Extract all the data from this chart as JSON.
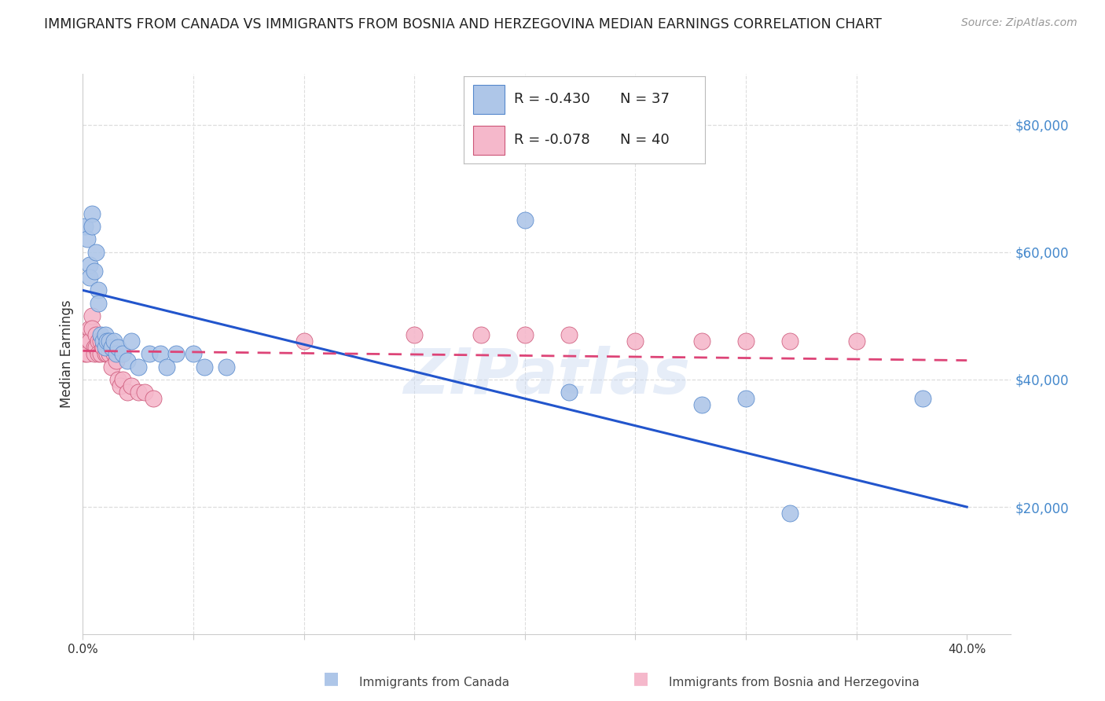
{
  "title": "IMMIGRANTS FROM CANADA VS IMMIGRANTS FROM BOSNIA AND HERZEGOVINA MEDIAN EARNINGS CORRELATION CHART",
  "source": "Source: ZipAtlas.com",
  "ylabel": "Median Earnings",
  "xlim": [
    0.0,
    0.42
  ],
  "ylim": [
    0,
    88000
  ],
  "watermark": "ZIPatlas",
  "canada_color": "#aec6e8",
  "canada_edge": "#5588cc",
  "bosnia_color": "#f5b8cb",
  "bosnia_edge": "#cc5577",
  "canada_line_color": "#2255cc",
  "bosnia_line_color": "#dd4477",
  "legend_R_canada": "-0.430",
  "legend_N_canada": "37",
  "legend_R_bosnia": "-0.078",
  "legend_N_bosnia": "40",
  "canada_label": "Immigrants from Canada",
  "bosnia_label": "Immigrants from Bosnia and Herzegovina",
  "canada_scatter_x": [
    0.001,
    0.002,
    0.003,
    0.003,
    0.004,
    0.004,
    0.005,
    0.006,
    0.007,
    0.007,
    0.008,
    0.009,
    0.01,
    0.01,
    0.011,
    0.012,
    0.013,
    0.014,
    0.015,
    0.016,
    0.018,
    0.02,
    0.022,
    0.025,
    0.03,
    0.035,
    0.038,
    0.042,
    0.05,
    0.055,
    0.065,
    0.2,
    0.22,
    0.28,
    0.3,
    0.32,
    0.38
  ],
  "canada_scatter_y": [
    64000,
    62000,
    58000,
    56000,
    66000,
    64000,
    57000,
    60000,
    54000,
    52000,
    47000,
    46000,
    47000,
    45000,
    46000,
    46000,
    45000,
    46000,
    44000,
    45000,
    44000,
    43000,
    46000,
    42000,
    44000,
    44000,
    42000,
    44000,
    44000,
    42000,
    42000,
    65000,
    38000,
    36000,
    37000,
    19000,
    37000
  ],
  "bosnia_scatter_x": [
    0.001,
    0.002,
    0.002,
    0.003,
    0.003,
    0.004,
    0.004,
    0.005,
    0.005,
    0.006,
    0.006,
    0.007,
    0.007,
    0.008,
    0.008,
    0.009,
    0.01,
    0.011,
    0.012,
    0.013,
    0.014,
    0.015,
    0.016,
    0.017,
    0.018,
    0.02,
    0.022,
    0.025,
    0.028,
    0.032,
    0.1,
    0.15,
    0.18,
    0.2,
    0.22,
    0.25,
    0.28,
    0.3,
    0.32,
    0.35
  ],
  "bosnia_scatter_y": [
    44000,
    46000,
    44000,
    48000,
    46000,
    50000,
    48000,
    45000,
    44000,
    47000,
    45000,
    46000,
    44000,
    46000,
    44000,
    45000,
    44000,
    44000,
    44000,
    42000,
    44000,
    43000,
    40000,
    39000,
    40000,
    38000,
    39000,
    38000,
    38000,
    37000,
    46000,
    47000,
    47000,
    47000,
    47000,
    46000,
    46000,
    46000,
    46000,
    46000
  ],
  "canada_line_x0": 0.0,
  "canada_line_y0": 54000,
  "canada_line_x1": 0.4,
  "canada_line_y1": 20000,
  "bosnia_line_x0": 0.0,
  "bosnia_line_y0": 44500,
  "bosnia_line_x1": 0.4,
  "bosnia_line_y1": 43000,
  "grid_color": "#dddddd",
  "background_color": "#ffffff",
  "title_fontsize": 13,
  "right_tick_color": "#4488cc"
}
